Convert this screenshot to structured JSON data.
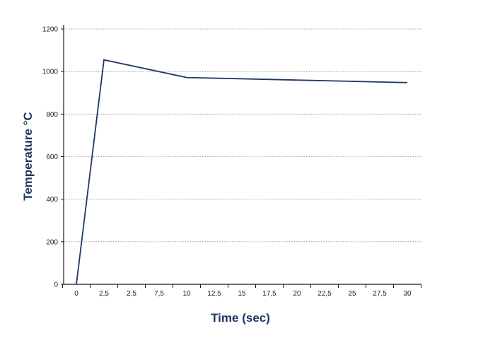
{
  "chart_data": {
    "type": "line",
    "xlabel": "Time (sec)",
    "ylabel": "Temperature °C",
    "ylim": [
      0,
      1200
    ],
    "y_ticks": [
      "0",
      "200",
      "400",
      "600",
      "800",
      "1000",
      "1200"
    ],
    "x_tick_labels": [
      "0",
      "2,5",
      "2,5",
      "7,5",
      "10",
      "12,5",
      "15",
      "17,5",
      "20",
      "22,5",
      "25",
      "27,5",
      "30"
    ],
    "grid": "horizontal dotted",
    "series": [
      {
        "x": [
          0,
          2.5,
          10,
          30
        ],
        "values": [
          0,
          1055,
          972,
          948
        ]
      }
    ],
    "color": "#1f3763"
  }
}
